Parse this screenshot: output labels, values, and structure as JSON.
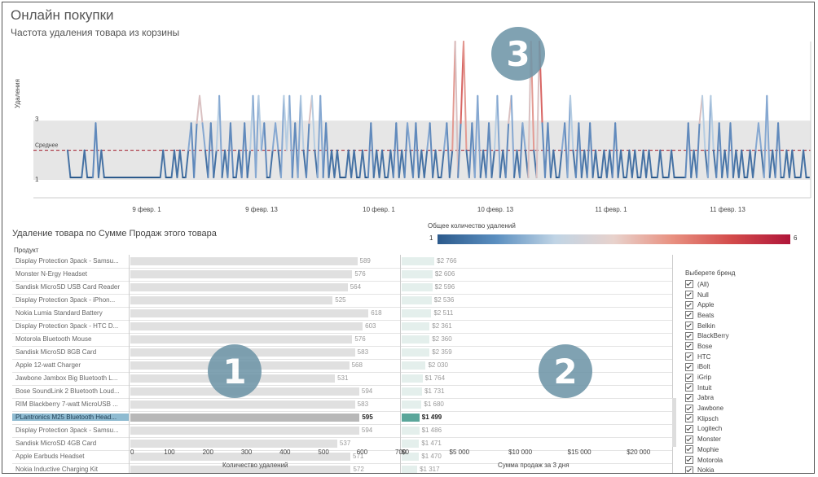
{
  "header": {
    "title": "Онлайн покупки",
    "subtitle": "Частота удаления товара из корзины"
  },
  "line_chart": {
    "ylabel": "Удаления",
    "avg_label": "Среднее",
    "y_ticks": [
      "3",
      "1"
    ],
    "x_ticks": [
      "9 февр. 1",
      "9 февр. 13",
      "10 февр. 1",
      "10 февр. 13",
      "11 февр. 1",
      "11 февр. 13"
    ]
  },
  "lower": {
    "title": "Удаление товара по Сумме Продаж этого товара",
    "product_header": "Продукт",
    "qty_axis_label": "Количество удалений",
    "sales_axis_label": "Сумма продаж за 3 дня",
    "qty_ticks": [
      "0",
      "100",
      "200",
      "300",
      "400",
      "500",
      "600",
      "700"
    ],
    "sales_ticks": [
      "$0",
      "$5 000",
      "$10 000",
      "$15 000",
      "$20 000"
    ]
  },
  "color_legend": {
    "title": "Общее количество удалений",
    "min": "1",
    "max": "6"
  },
  "products": [
    {
      "name": "Display Protection 3pack - Samsu...",
      "qty": 589,
      "qty_label": "589",
      "sales": 2766,
      "sales_label": "$2 766"
    },
    {
      "name": "Monster N-Ergy Headset",
      "qty": 576,
      "qty_label": "576",
      "sales": 2606,
      "sales_label": "$2 606"
    },
    {
      "name": "Sandisk MicroSD USB Card Reader",
      "qty": 564,
      "qty_label": "564",
      "sales": 2596,
      "sales_label": "$2 596"
    },
    {
      "name": "Display Protection 3pack - iPhon...",
      "qty": 525,
      "qty_label": "525",
      "sales": 2536,
      "sales_label": "$2 536"
    },
    {
      "name": "Nokia Lumia Standard Battery",
      "qty": 618,
      "qty_label": "618",
      "sales": 2511,
      "sales_label": "$2 511"
    },
    {
      "name": "Display Protection 3pack - HTC D...",
      "qty": 603,
      "qty_label": "603",
      "sales": 2361,
      "sales_label": "$2 361"
    },
    {
      "name": "Motorola Bluetooth Mouse",
      "qty": 576,
      "qty_label": "576",
      "sales": 2360,
      "sales_label": "$2 360"
    },
    {
      "name": "Sandisk MicroSD 8GB Card",
      "qty": 583,
      "qty_label": "583",
      "sales": 2359,
      "sales_label": "$2 359"
    },
    {
      "name": "Apple 12-watt Charger",
      "qty": 568,
      "qty_label": "568",
      "sales": 2030,
      "sales_label": "$2 030"
    },
    {
      "name": "Jawbone Jambox Big Bluetooth L...",
      "qty": 531,
      "qty_label": "531",
      "sales": 1764,
      "sales_label": "$1 764"
    },
    {
      "name": "Bose SoundLink 2 Bluetooth Loud...",
      "qty": 594,
      "qty_label": "594",
      "sales": 1731,
      "sales_label": "$1 731"
    },
    {
      "name": "RIM Blackberry 7-watt MicroUSB ...",
      "qty": 583,
      "qty_label": "583",
      "sales": 1680,
      "sales_label": "$1 680"
    },
    {
      "name": "PLantronics M25 Bluetooth Head...",
      "qty": 595,
      "qty_label": "595",
      "sales": 1499,
      "sales_label": "$1 499",
      "selected": true
    },
    {
      "name": "Display Protection 3pack - Samsu...",
      "qty": 594,
      "qty_label": "594",
      "sales": 1486,
      "sales_label": "$1 486"
    },
    {
      "name": "Sandisk MicroSD 4GB Card",
      "qty": 537,
      "qty_label": "537",
      "sales": 1471,
      "sales_label": "$1 471"
    },
    {
      "name": "Apple Earbuds Headset",
      "qty": 571,
      "qty_label": "571",
      "sales": 1470,
      "sales_label": "$1 470"
    },
    {
      "name": "Nokia Inductive Charging Kit",
      "qty": 572,
      "qty_label": "572",
      "sales": 1317,
      "sales_label": "$1 317"
    }
  ],
  "filter": {
    "title": "Выберете бренд",
    "items": [
      "(All)",
      "Null",
      "Apple",
      "Beats",
      "Belkin",
      "BlackBerry",
      "Bose",
      "HTC",
      "iBolt",
      "iGrip",
      "Intuit",
      "Jabra",
      "Jawbone",
      "Klipsch",
      "Logitech",
      "Monster",
      "Mophie",
      "Motorola",
      "Nokia"
    ]
  },
  "badges": [
    "1",
    "2",
    "3"
  ],
  "chart_data": {
    "type": "line",
    "ylabel": "Удаления",
    "y_reference": {
      "label": "Среднее",
      "value": 2.0
    },
    "band": [
      1,
      3
    ],
    "color_scale": {
      "min": 1,
      "max": 6,
      "colors": [
        "#2c5a8c",
        "#c0d4e5",
        "#b0163a"
      ]
    },
    "series_values": [
      2,
      1,
      1,
      1,
      1,
      1,
      2,
      1,
      1,
      1,
      3,
      1,
      2,
      1,
      1,
      1,
      1,
      1,
      1,
      1,
      1,
      1,
      1,
      1,
      1,
      1,
      1,
      1,
      1,
      1,
      1,
      1,
      1,
      1,
      2,
      1,
      1,
      1,
      2,
      1,
      2,
      1,
      1,
      2,
      3,
      1,
      3,
      4,
      3,
      2,
      1,
      3,
      1,
      2,
      4,
      1,
      2,
      1,
      3,
      1,
      1,
      2,
      1,
      3,
      1,
      2,
      4,
      1,
      4,
      2,
      3,
      1,
      1,
      2,
      3,
      2,
      1,
      4,
      2,
      4,
      1,
      3,
      1,
      4,
      2,
      1,
      3,
      4,
      2,
      1,
      4,
      1,
      3,
      1,
      2,
      1,
      2,
      1,
      1,
      1,
      2,
      1,
      2,
      1,
      1,
      2,
      1,
      1,
      3,
      1,
      2,
      1,
      2,
      1,
      1,
      2,
      1,
      3,
      1,
      2,
      1,
      3,
      2,
      1,
      3,
      1,
      2,
      1,
      2,
      3,
      1,
      2,
      1,
      1,
      2,
      3,
      1,
      2,
      6,
      1,
      3,
      6,
      2,
      1,
      3,
      1,
      4,
      1,
      2,
      1,
      3,
      1,
      2,
      4,
      1,
      2,
      1,
      3,
      4,
      1,
      2,
      1,
      3,
      2,
      1,
      6,
      2,
      1,
      6,
      3,
      1,
      3,
      1,
      2,
      1,
      1,
      2,
      3,
      1,
      4,
      2,
      1,
      3,
      1,
      2,
      1,
      3,
      1,
      2,
      1,
      1,
      2,
      1,
      2,
      1,
      3,
      1,
      2,
      1,
      1,
      2,
      1,
      2,
      1,
      1,
      2,
      1,
      2,
      1,
      1,
      1,
      2,
      1,
      1,
      1,
      2,
      1,
      1,
      1,
      1,
      1,
      3,
      1,
      2,
      1,
      3,
      4,
      2,
      1,
      4,
      2,
      1,
      3,
      1,
      2,
      1,
      3,
      1,
      2,
      1,
      2,
      1,
      1,
      2,
      1,
      2,
      3,
      2,
      1,
      4,
      1,
      2,
      1,
      3,
      1,
      1,
      2,
      1,
      2,
      1,
      1,
      1,
      2,
      1,
      1
    ]
  }
}
